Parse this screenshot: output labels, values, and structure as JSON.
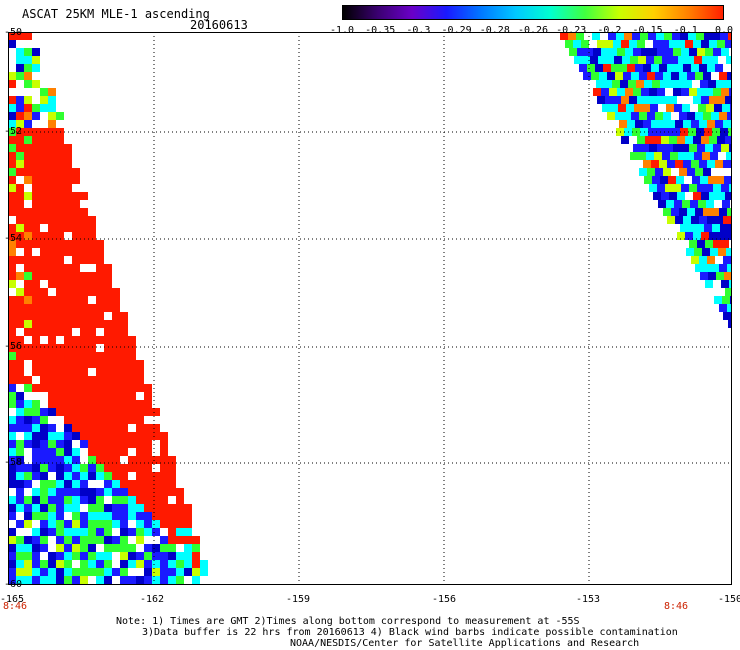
{
  "header": {
    "title": "ASCAT 25KM MLE-1 ascending",
    "date": "20160613"
  },
  "colorbar": {
    "tick_labels": [
      "-1.0",
      "-0.35",
      "-0.3",
      "-0.29",
      "-0.28",
      "-0.26",
      "-0.23",
      "-0.2",
      "-0.15",
      "-0.1",
      "0.0"
    ],
    "colors": [
      "#000000",
      "#3a0070",
      "#6a00c8",
      "#1a1aff",
      "#0078ff",
      "#00c8ff",
      "#00ffd0",
      "#40ff40",
      "#c8ff00",
      "#ffd000",
      "#ff8000",
      "#ff2000"
    ]
  },
  "map": {
    "lat_labels": [
      "-50",
      "-52",
      "-54",
      "-56",
      "-58",
      "-60"
    ],
    "lon_labels": [
      "-165",
      "-162",
      "-159",
      "-156",
      "-153",
      "-150"
    ],
    "time_labels": [
      "8:46",
      "8:46"
    ],
    "palette": {
      "red": "#ff1a00",
      "blue": "#1a1aff",
      "darkblue": "#0000c8",
      "cyan": "#00ffff",
      "green": "#30ff30",
      "yellowgreen": "#c8ff00",
      "orange": "#ff8000",
      "white": "#ffffff"
    }
  },
  "notes": {
    "line1": "Note: 1) Times are GMT 2)Times along bottom correspond to measurement at -55S",
    "line2": "3)Data buffer is 22 hrs from 20160613 4) Black wind barbs indicate possible contamination",
    "line3": "NOAA/NESDIS/Center for Satellite Applications and Research"
  }
}
